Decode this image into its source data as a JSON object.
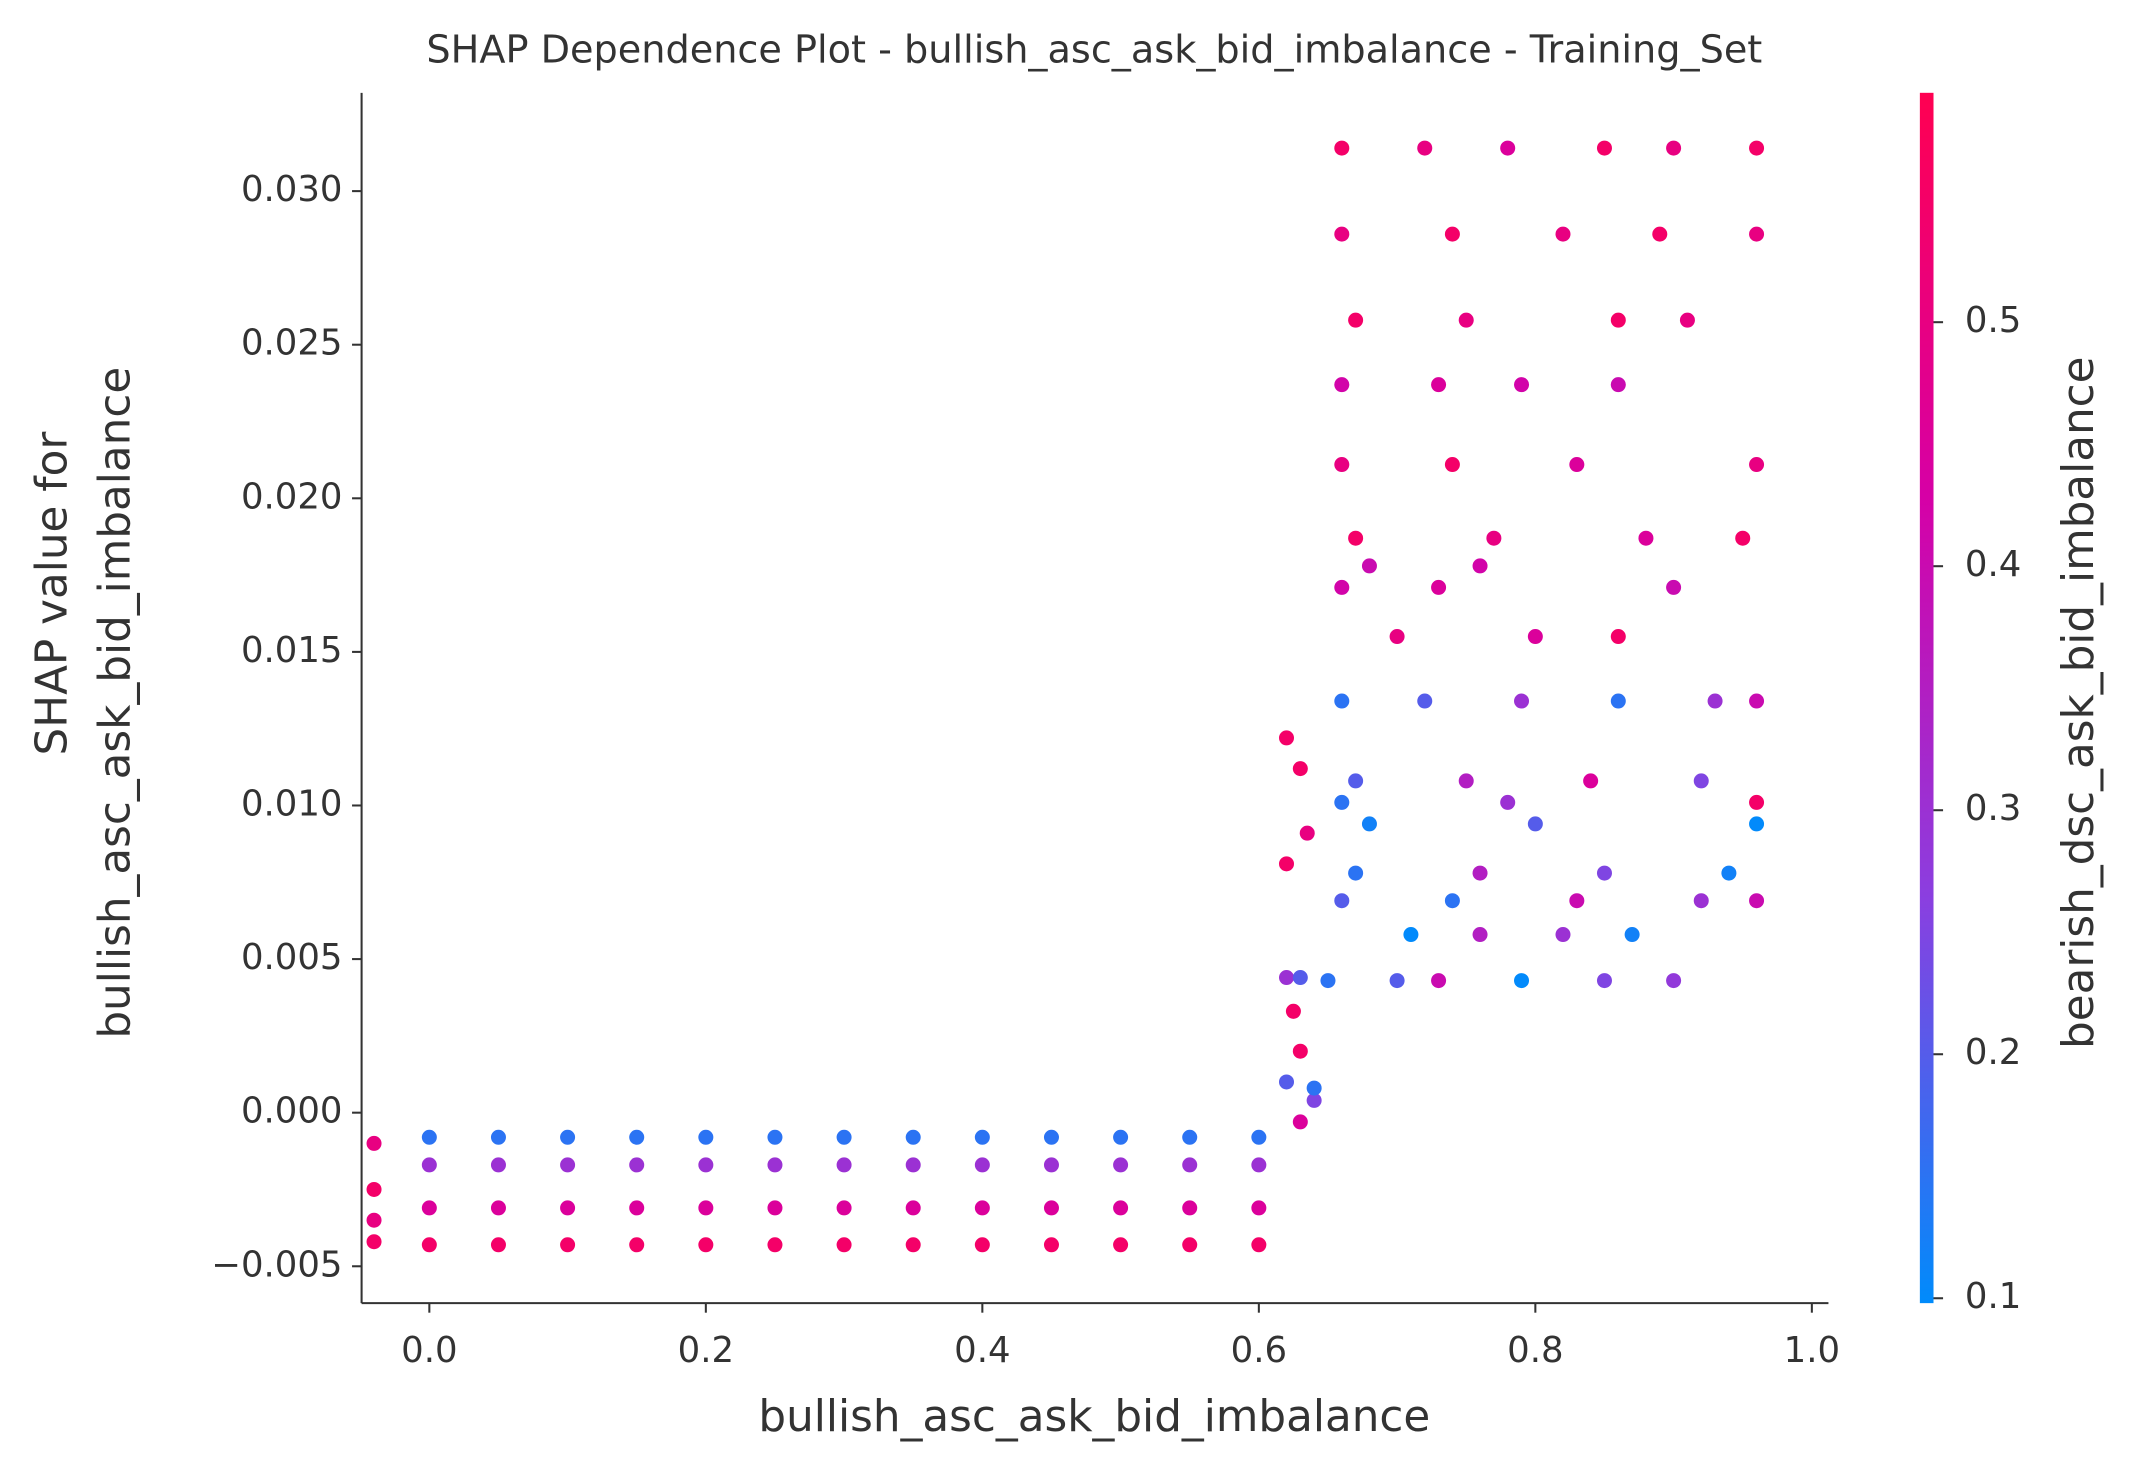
{
  "chart_data": {
    "type": "scatter",
    "title": "SHAP Dependence Plot - bullish_asc_ask_bid_imbalance - Training_Set",
    "x_label": "bullish_asc_ask_bid_imbalance",
    "y_label": [
      "SHAP value for",
      "bullish_asc_ask_bid_imbalance"
    ],
    "colorbar_label": "bearish_dsc_ask_bid_imbalance",
    "colormap": [
      "#008bfb",
      "#8a3fe0",
      "#d600a6",
      "#ff0051"
    ],
    "clim": [
      0.098,
      0.594
    ],
    "colorbar_ticks": [
      0.1,
      0.2,
      0.3,
      0.4,
      0.5
    ],
    "xlim": [
      -0.049,
      1.012
    ],
    "ylim": [
      -0.0062,
      0.0332
    ],
    "xticks": [
      {
        "value": 0,
        "label": "0.0"
      },
      {
        "value": 0.2,
        "label": "0.2"
      },
      {
        "value": 0.4,
        "label": "0.4"
      },
      {
        "value": 0.6,
        "label": "0.6"
      },
      {
        "value": 0.8,
        "label": "0.8"
      },
      {
        "value": 1,
        "label": "1.0"
      }
    ],
    "yticks": [
      {
        "value": -0.005,
        "label": "−0.005"
      },
      {
        "value": 0,
        "label": "0.000"
      },
      {
        "value": 0.005,
        "label": "0.005"
      },
      {
        "value": 0.01,
        "label": "0.010"
      },
      {
        "value": 0.015,
        "label": "0.015"
      },
      {
        "value": 0.02,
        "label": "0.020"
      },
      {
        "value": 0.025,
        "label": "0.025"
      },
      {
        "value": 0.03,
        "label": "0.030"
      }
    ],
    "series": [
      {
        "x": [
          -0.04,
          -0.04,
          -0.04,
          -0.04,
          0,
          0,
          0,
          0,
          0.05,
          0.05,
          0.05,
          0.05,
          0.1,
          0.1,
          0.1,
          0.1,
          0.15,
          0.15,
          0.15,
          0.15,
          0.2,
          0.2,
          0.2,
          0.2,
          0.25,
          0.25,
          0.25,
          0.25,
          0.3,
          0.3,
          0.3,
          0.3,
          0.35,
          0.35,
          0.35,
          0.35,
          0.4,
          0.4,
          0.4,
          0.4,
          0.45,
          0.45,
          0.45,
          0.45,
          0.5,
          0.5,
          0.5,
          0.5,
          0.55,
          0.55,
          0.55,
          0.55,
          0.6,
          0.6,
          0.6,
          0.6,
          0.62,
          0.63,
          0.62,
          0.635,
          0.62,
          0.63,
          0.625,
          0.63,
          0.62,
          0.64,
          0.63,
          0.64,
          0.66,
          0.72,
          0.78,
          0.85,
          0.9,
          0.96,
          0.66,
          0.74,
          0.82,
          0.89,
          0.96,
          0.67,
          0.75,
          0.86,
          0.91,
          0.66,
          0.73,
          0.79,
          0.86,
          0.66,
          0.74,
          0.83,
          0.96,
          0.67,
          0.77,
          0.88,
          0.95,
          0.68,
          0.76,
          0.66,
          0.73,
          0.9,
          0.7,
          0.8,
          0.86,
          0.66,
          0.72,
          0.79,
          0.86,
          0.93,
          0.96,
          0.67,
          0.75,
          0.84,
          0.92,
          0.66,
          0.78,
          0.96,
          0.68,
          0.8,
          0.96,
          0.67,
          0.76,
          0.85,
          0.94,
          0.66,
          0.74,
          0.83,
          0.92,
          0.96,
          0.71,
          0.76,
          0.82,
          0.87,
          0.65,
          0.7,
          0.73,
          0.79,
          0.85,
          0.9
        ],
        "values": [
          -0.001,
          -0.0025,
          -0.0035,
          -0.0042,
          -0.0008,
          -0.0017,
          -0.0031,
          -0.0043,
          -0.0008,
          -0.0017,
          -0.0031,
          -0.0043,
          -0.0008,
          -0.0017,
          -0.0031,
          -0.0043,
          -0.0008,
          -0.0017,
          -0.0031,
          -0.0043,
          -0.0008,
          -0.0017,
          -0.0031,
          -0.0043,
          -0.0008,
          -0.0017,
          -0.0031,
          -0.0043,
          -0.0008,
          -0.0017,
          -0.0031,
          -0.0043,
          -0.0008,
          -0.0017,
          -0.0031,
          -0.0043,
          -0.0008,
          -0.0017,
          -0.0031,
          -0.0043,
          -0.0008,
          -0.0017,
          -0.0031,
          -0.0043,
          -0.0008,
          -0.0017,
          -0.0031,
          -0.0043,
          -0.0008,
          -0.0017,
          -0.0031,
          -0.0043,
          -0.0008,
          -0.0017,
          -0.0031,
          -0.0043,
          0.0122,
          0.0112,
          0.0081,
          0.0091,
          0.0044,
          0.0044,
          0.0033,
          0.002,
          0.001,
          0.0004,
          -0.0003,
          0.0008,
          0.0314,
          0.0314,
          0.0314,
          0.0314,
          0.0314,
          0.0314,
          0.0286,
          0.0286,
          0.0286,
          0.0286,
          0.0286,
          0.0258,
          0.0258,
          0.0258,
          0.0258,
          0.0237,
          0.0237,
          0.0237,
          0.0237,
          0.0211,
          0.0211,
          0.0211,
          0.0211,
          0.0187,
          0.0187,
          0.0187,
          0.0187,
          0.0178,
          0.0178,
          0.0171,
          0.0171,
          0.0171,
          0.0155,
          0.0155,
          0.0155,
          0.0134,
          0.0134,
          0.0134,
          0.0134,
          0.0134,
          0.0134,
          0.0108,
          0.0108,
          0.0108,
          0.0108,
          0.0101,
          0.0101,
          0.0101,
          0.0094,
          0.0094,
          0.0094,
          0.0078,
          0.0078,
          0.0078,
          0.0078,
          0.0069,
          0.0069,
          0.0069,
          0.0069,
          0.0069,
          0.0058,
          0.0058,
          0.0058,
          0.0058,
          0.0043,
          0.0043,
          0.0043,
          0.0043,
          0.0043,
          0.0043
        ],
        "color_values": [
          0.5,
          0.55,
          0.5,
          0.55,
          0.15,
          0.3,
          0.45,
          0.55,
          0.15,
          0.3,
          0.45,
          0.55,
          0.15,
          0.3,
          0.45,
          0.55,
          0.15,
          0.3,
          0.45,
          0.55,
          0.15,
          0.3,
          0.45,
          0.55,
          0.15,
          0.3,
          0.45,
          0.55,
          0.15,
          0.3,
          0.45,
          0.55,
          0.15,
          0.3,
          0.45,
          0.55,
          0.15,
          0.3,
          0.45,
          0.55,
          0.15,
          0.3,
          0.45,
          0.55,
          0.15,
          0.3,
          0.45,
          0.55,
          0.15,
          0.3,
          0.45,
          0.55,
          0.15,
          0.3,
          0.45,
          0.55,
          0.55,
          0.55,
          0.55,
          0.5,
          0.3,
          0.2,
          0.55,
          0.55,
          0.2,
          0.25,
          0.45,
          0.15,
          0.55,
          0.5,
          0.45,
          0.55,
          0.5,
          0.55,
          0.5,
          0.55,
          0.5,
          0.55,
          0.5,
          0.55,
          0.5,
          0.55,
          0.5,
          0.42,
          0.45,
          0.42,
          0.4,
          0.5,
          0.55,
          0.45,
          0.5,
          0.55,
          0.5,
          0.45,
          0.55,
          0.4,
          0.42,
          0.42,
          0.45,
          0.4,
          0.5,
          0.45,
          0.55,
          0.15,
          0.2,
          0.3,
          0.15,
          0.3,
          0.4,
          0.2,
          0.35,
          0.45,
          0.25,
          0.15,
          0.3,
          0.55,
          0.12,
          0.2,
          0.1,
          0.15,
          0.35,
          0.25,
          0.12,
          0.2,
          0.15,
          0.4,
          0.3,
          0.4,
          0.1,
          0.35,
          0.3,
          0.12,
          0.15,
          0.2,
          0.4,
          0.1,
          0.25,
          0.28
        ]
      }
    ]
  }
}
